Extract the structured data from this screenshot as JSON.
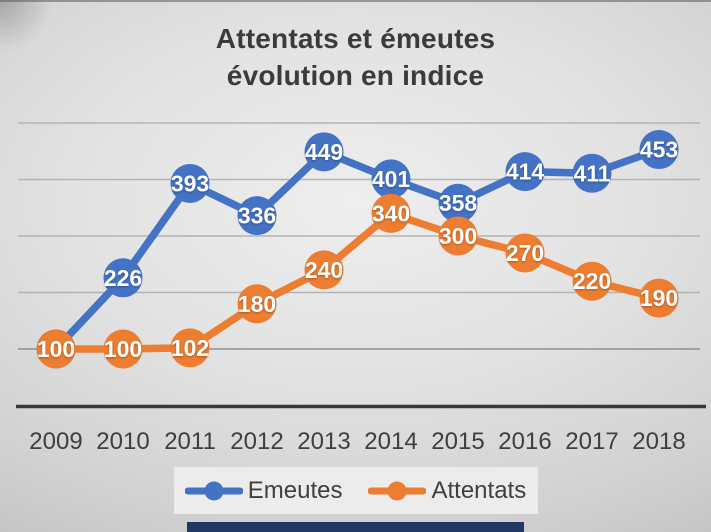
{
  "chart_data": {
    "type": "line",
    "title": "Attentats et émeutes évolution en indice",
    "title_line1": "Attentats et émeutes",
    "title_line2": "évolution en indice",
    "categories": [
      "2009",
      "2010",
      "2011",
      "2012",
      "2013",
      "2014",
      "2015",
      "2016",
      "2017",
      "2018"
    ],
    "series": [
      {
        "name": "Emeutes",
        "color": "#4472C4",
        "values": [
          100,
          226,
          393,
          336,
          449,
          401,
          358,
          414,
          411,
          453
        ]
      },
      {
        "name": "Attentats",
        "color": "#ED7D31",
        "values": [
          100,
          100,
          102,
          180,
          240,
          340,
          300,
          270,
          220,
          190
        ]
      }
    ],
    "xlabel": "",
    "ylabel": "",
    "ylim": [
      0,
      530
    ],
    "gridline_values": [
      100,
      200,
      300,
      400,
      500
    ],
    "grid": true,
    "legend_position": "bottom",
    "data_labels": "on-point"
  },
  "colors": {
    "gridline": "#B4B4B4",
    "gridline_base": "#8F8F8F",
    "axis": "#383838",
    "accent_bar": "#1F3864"
  }
}
